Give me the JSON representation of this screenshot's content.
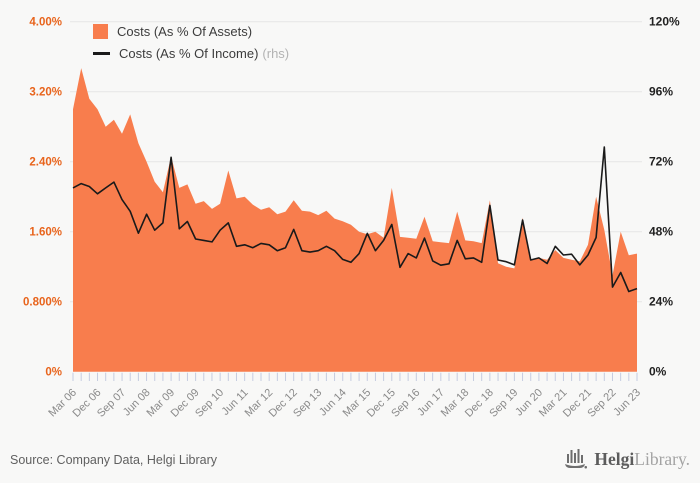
{
  "legend": {
    "series1_label": "Costs (As % Of Assets)",
    "series2_label": "Costs (As % Of Income)",
    "series2_suffix": "(rhs)"
  },
  "footer": {
    "source_text": "Source: Company Data, Helgi Library"
  },
  "logo": {
    "icon": "bar-chart-ship-icon",
    "part1": "Helgi",
    "part2": "Library."
  },
  "colors": {
    "background": "#f8f8f7",
    "area_fill": "#F87D4D",
    "line_stroke": "#1a1a1a",
    "left_axis_label": "#E8641C",
    "right_axis_label": "#222222",
    "x_axis_label": "#8a8a8a",
    "gridline": "#e6e6e5",
    "tick_mark": "#c5cce0"
  },
  "chart_data": {
    "type": "area",
    "title": "",
    "frequency": "quarterly",
    "x_start": "Mar 06",
    "x_end": "Jun 23",
    "x_tick_labels": [
      "Mar 06",
      "Dec 06",
      "Sep 07",
      "Jun 08",
      "Mar 09",
      "Dec 09",
      "Sep 10",
      "Jun 11",
      "Mar 12",
      "Dec 12",
      "Sep 13",
      "Jun 14",
      "Mar 15",
      "Dec 15",
      "Sep 16",
      "Jun 17",
      "Mar 18",
      "Dec 18",
      "Sep 19",
      "Jun 20",
      "Mar 21",
      "Dec 21",
      "Sep 22",
      "Jun 23"
    ],
    "label_every_n_points": 3,
    "left_axis": {
      "tick_labels": [
        "4.00%",
        "3.20%",
        "2.40%",
        "1.60%",
        "0.800%",
        "0%"
      ],
      "min": 0,
      "max": 4
    },
    "right_axis": {
      "tick_labels": [
        "120%",
        "96%",
        "72%",
        "48%",
        "24%",
        "0%"
      ],
      "min": 0,
      "max": 120
    },
    "grid": "horizontal",
    "legend_position": "top-left-inside",
    "series": [
      {
        "name": "Costs (As % Of Assets)",
        "axis": "left",
        "style": "area",
        "color": "#F87D4D",
        "values": [
          3.0,
          3.47,
          3.12,
          3.0,
          2.8,
          2.88,
          2.72,
          2.94,
          2.61,
          2.4,
          2.17,
          2.05,
          2.46,
          2.1,
          2.14,
          1.92,
          1.95,
          1.86,
          1.92,
          2.3,
          1.98,
          2.0,
          1.91,
          1.85,
          1.88,
          1.8,
          1.83,
          1.96,
          1.84,
          1.83,
          1.79,
          1.84,
          1.75,
          1.72,
          1.68,
          1.6,
          1.57,
          1.6,
          1.53,
          2.1,
          1.54,
          1.53,
          1.52,
          1.77,
          1.49,
          1.48,
          1.47,
          1.83,
          1.5,
          1.49,
          1.47,
          1.96,
          1.24,
          1.2,
          1.18,
          1.76,
          1.28,
          1.3,
          1.28,
          1.39,
          1.3,
          1.28,
          1.26,
          1.45,
          2.0,
          1.62,
          1.1,
          1.6,
          1.33,
          1.35
        ]
      },
      {
        "name": "Costs (As % Of Income)",
        "axis": "right",
        "style": "line",
        "color": "#1a1a1a",
        "values": [
          63,
          64.5,
          63.5,
          61,
          63,
          65,
          59,
          55,
          47.5,
          54,
          48.5,
          51,
          73.5,
          49,
          51.5,
          45.5,
          45,
          44.5,
          48.5,
          51,
          43,
          43.5,
          42.5,
          44,
          43.5,
          41.5,
          42.5,
          48.8,
          41.5,
          41,
          41.5,
          43,
          41.5,
          38.5,
          37.5,
          40.5,
          47.4,
          41.5,
          45,
          50.5,
          35.8,
          40.5,
          39,
          45.8,
          38,
          36.5,
          37,
          45,
          38.7,
          39,
          37.5,
          57,
          38.3,
          37.7,
          36.6,
          52,
          38.3,
          39,
          37.1,
          43,
          40,
          40.3,
          36.6,
          40,
          46,
          77,
          29,
          34,
          27.5,
          28.5
        ]
      }
    ]
  }
}
